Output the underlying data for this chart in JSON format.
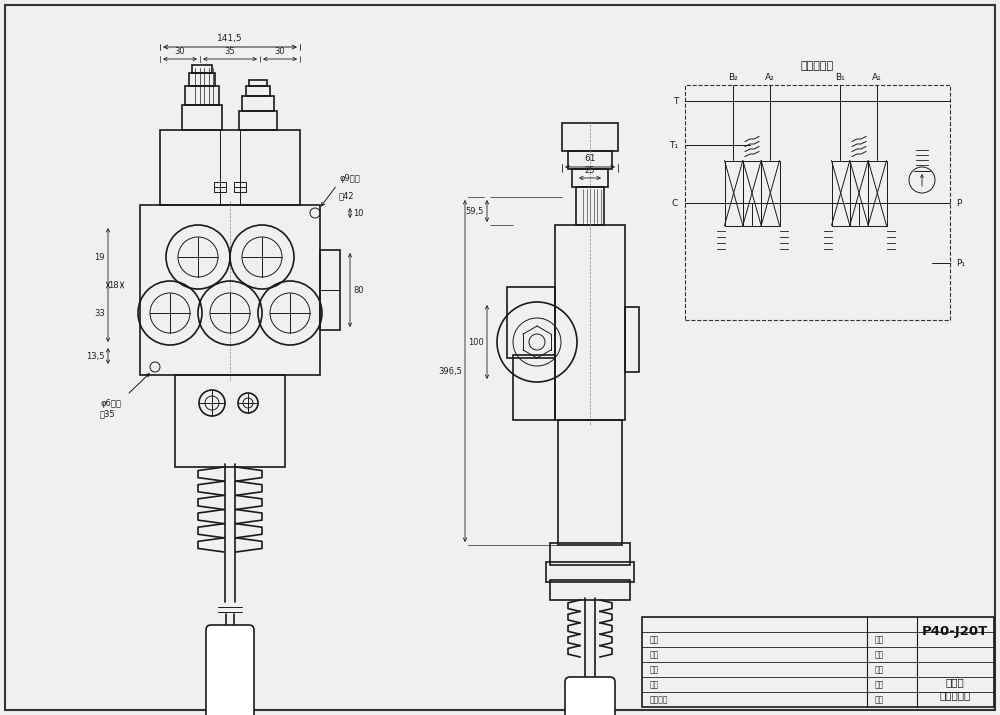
{
  "bg_color": "#f0f0f0",
  "line_color": "#1a1a1a",
  "dim_color": "#222222",
  "title": "P40-J20T",
  "subtitle": "多路阀\n外形尺寸图",
  "hydraulic_title": "液压原理图",
  "dim_141_5": "141,5",
  "dim_30a": "30",
  "dim_35": "35",
  "dim_30b": "30",
  "dim_19": "19",
  "dim_18": "18",
  "dim_33": "33",
  "dim_13_5": "13,5",
  "dim_80": "80",
  "dim_10": "10",
  "dim_hole_9": "φ9小孔",
  "dim_42": "高42",
  "dim_hole_6": "φ6小孔",
  "dim_35b": "高35",
  "dim_61": "61",
  "dim_25": "25",
  "dim_59_5": "59,5",
  "dim_100": "100",
  "dim_396_5": "396,5"
}
